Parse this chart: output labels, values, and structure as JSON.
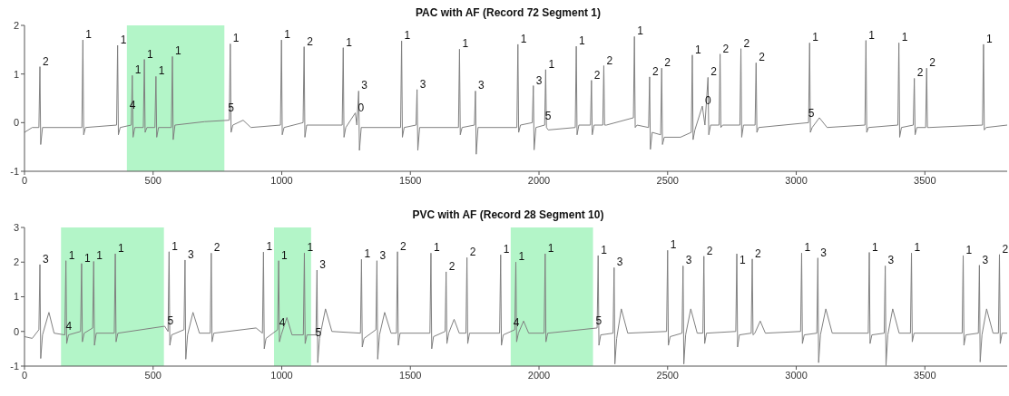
{
  "chart_data": [
    {
      "type": "line",
      "title": "PAC with AF (Record 72 Segment 1)",
      "xlim": [
        0,
        3820
      ],
      "xticks": [
        0,
        500,
        1000,
        1500,
        2000,
        2500,
        3000,
        3500
      ],
      "ylim": [
        -1,
        2
      ],
      "yticks": [
        -1,
        0,
        1,
        2
      ],
      "bands": [
        {
          "axis": "x",
          "from": 398,
          "to": 777,
          "color": "#b3f5c8"
        }
      ],
      "series": [
        {
          "color": "#808080",
          "x": [
            0,
            30,
            56,
            60,
            63,
            70,
            223,
            227,
            230,
            237,
            358,
            362,
            365,
            372,
            415,
            419,
            422,
            429,
            462,
            466,
            469,
            476,
            507,
            511,
            514,
            521,
            571,
            575,
            578,
            585,
            700,
            796,
            800,
            803,
            810,
            850,
            880,
            995,
            999,
            1002,
            1009,
            1083,
            1087,
            1090,
            1097,
            1235,
            1239,
            1242,
            1249,
            1286,
            1292,
            1299,
            1302,
            1309,
            1462,
            1466,
            1469,
            1476,
            1522,
            1526,
            1529,
            1536,
            1687,
            1691,
            1694,
            1701,
            1749,
            1753,
            1756,
            1763,
            1914,
            1918,
            1921,
            1928,
            1974,
            1978,
            1981,
            1988,
            2022,
            2026,
            2029,
            2036,
            2141,
            2145,
            2148,
            2155,
            2200,
            2204,
            2207,
            2214,
            2248,
            2252,
            2255,
            2262,
            2367,
            2371,
            2374,
            2381,
            2426,
            2430,
            2433,
            2440,
            2473,
            2477,
            2480,
            2487,
            2550,
            2592,
            2596,
            2599,
            2606,
            2635,
            2645,
            2657,
            2660,
            2667,
            2700,
            2704,
            2707,
            2714,
            2781,
            2785,
            2788,
            2795,
            2840,
            2844,
            2847,
            2854,
            3048,
            3052,
            3055,
            3062,
            3090,
            3120,
            3267,
            3271,
            3274,
            3281,
            3395,
            3399,
            3402,
            3409,
            3455,
            3459,
            3462,
            3469,
            3503,
            3507,
            3510,
            3517,
            3724,
            3728,
            3731,
            3738,
            3820
          ],
          "values": [
            -0.2,
            -0.1,
            -0.1,
            1.15,
            -0.45,
            -0.1,
            -0.1,
            1.7,
            -0.25,
            -0.1,
            -0.05,
            1.59,
            -0.25,
            -0.1,
            -0.05,
            0.97,
            -0.3,
            -0.1,
            -0.1,
            1.3,
            -0.2,
            -0.1,
            -0.1,
            0.95,
            -0.3,
            -0.1,
            -0.1,
            1.36,
            -0.35,
            -0.05,
            0.02,
            0.05,
            1.62,
            -0.2,
            -0.05,
            0.05,
            -0.1,
            -0.05,
            1.7,
            -0.25,
            -0.1,
            0,
            1.56,
            -0.3,
            -0.05,
            -0.05,
            1.54,
            -0.3,
            -0.1,
            0.2,
            -0.05,
            0.65,
            -0.57,
            -0.1,
            -0.1,
            1.68,
            -0.3,
            -0.1,
            -0.05,
            0.68,
            -0.57,
            -0.1,
            -0.1,
            1.51,
            -0.25,
            -0.1,
            -0.05,
            0.65,
            -0.65,
            -0.1,
            -0.1,
            1.61,
            -0.2,
            -0.05,
            0,
            0.76,
            -0.56,
            -0.1,
            -0.05,
            1.09,
            -0.1,
            -0.15,
            -0.1,
            1.57,
            -0.25,
            -0.05,
            -0.05,
            0.87,
            -0.25,
            -0.05,
            -0.05,
            1.17,
            -0.05,
            -0.05,
            0.1,
            1.77,
            -0.1,
            -0.05,
            -0.1,
            0.94,
            -0.55,
            -0.2,
            -0.25,
            1.12,
            -0.45,
            -0.3,
            -0.3,
            -0.2,
            1.39,
            -0.35,
            -0.15,
            0.34,
            -0.05,
            0.93,
            -0.25,
            -0.05,
            -0.05,
            1.41,
            -0.1,
            -0.05,
            -0.05,
            1.52,
            -0.3,
            -0.05,
            -0.05,
            1.23,
            -0.2,
            -0.1,
            0,
            1.64,
            -0.2,
            -0.1,
            0.1,
            -0.1,
            -0.05,
            1.69,
            -0.2,
            -0.1,
            -0.05,
            1.64,
            -0.3,
            -0.1,
            -0.05,
            0.91,
            -0.25,
            -0.1,
            -0.1,
            1.12,
            -0.1,
            -0.1,
            -0.05,
            1.61,
            -0.15,
            -0.1,
            -0.05
          ]
        }
      ],
      "annotations": [
        {
          "text": "2",
          "x": 60,
          "y": 1.15
        },
        {
          "text": "1",
          "x": 227,
          "y": 1.7
        },
        {
          "text": "1",
          "x": 362,
          "y": 1.59
        },
        {
          "text": "4",
          "x": 398,
          "y": 0.25
        },
        {
          "text": "1",
          "x": 419,
          "y": 0.97
        },
        {
          "text": "1",
          "x": 466,
          "y": 1.3
        },
        {
          "text": "1",
          "x": 511,
          "y": 0.95
        },
        {
          "text": "1",
          "x": 575,
          "y": 1.36
        },
        {
          "text": "5",
          "x": 780,
          "y": 0.2
        },
        {
          "text": "1",
          "x": 800,
          "y": 1.62
        },
        {
          "text": "1",
          "x": 999,
          "y": 1.7
        },
        {
          "text": "2",
          "x": 1087,
          "y": 1.56
        },
        {
          "text": "1",
          "x": 1239,
          "y": 1.54
        },
        {
          "text": "0",
          "x": 1286,
          "y": 0.2
        },
        {
          "text": "3",
          "x": 1299,
          "y": 0.65
        },
        {
          "text": "1",
          "x": 1466,
          "y": 1.68
        },
        {
          "text": "3",
          "x": 1526,
          "y": 0.68
        },
        {
          "text": "1",
          "x": 1691,
          "y": 1.51
        },
        {
          "text": "3",
          "x": 1753,
          "y": 0.65
        },
        {
          "text": "1",
          "x": 1918,
          "y": 1.61
        },
        {
          "text": "3",
          "x": 1978,
          "y": 0.76
        },
        {
          "text": "5",
          "x": 2013,
          "y": 0.03
        },
        {
          "text": "1",
          "x": 2026,
          "y": 1.09
        },
        {
          "text": "1",
          "x": 2145,
          "y": 1.57
        },
        {
          "text": "2",
          "x": 2204,
          "y": 0.87
        },
        {
          "text": "2",
          "x": 2252,
          "y": 1.17
        },
        {
          "text": "1",
          "x": 2371,
          "y": 1.77
        },
        {
          "text": "2",
          "x": 2430,
          "y": 0.94
        },
        {
          "text": "2",
          "x": 2477,
          "y": 1.12
        },
        {
          "text": "1",
          "x": 2596,
          "y": 1.39
        },
        {
          "text": "0",
          "x": 2635,
          "y": 0.34
        },
        {
          "text": "2",
          "x": 2657,
          "y": 0.93
        },
        {
          "text": "2",
          "x": 2704,
          "y": 1.41
        },
        {
          "text": "2",
          "x": 2785,
          "y": 1.52
        },
        {
          "text": "2",
          "x": 2844,
          "y": 1.23
        },
        {
          "text": "5",
          "x": 3036,
          "y": 0.09
        },
        {
          "text": "1",
          "x": 3052,
          "y": 1.64
        },
        {
          "text": "1",
          "x": 3271,
          "y": 1.69
        },
        {
          "text": "1",
          "x": 3399,
          "y": 1.64
        },
        {
          "text": "2",
          "x": 3459,
          "y": 0.91
        },
        {
          "text": "2",
          "x": 3507,
          "y": 1.12
        },
        {
          "text": "1",
          "x": 3728,
          "y": 1.61
        }
      ]
    },
    {
      "type": "line",
      "title": "PVC with AF (Record 28 Segment 10)",
      "xlim": [
        0,
        3820
      ],
      "xticks": [
        0,
        500,
        1000,
        1500,
        2000,
        2500,
        3000,
        3500
      ],
      "ylim": [
        -1,
        3
      ],
      "yticks": [
        -1,
        0,
        1,
        2,
        3
      ],
      "bands": [
        {
          "axis": "x",
          "from": 142,
          "to": 542,
          "color": "#b3f5c8"
        },
        {
          "axis": "x",
          "from": 970,
          "to": 1114,
          "color": "#b3f5c8"
        },
        {
          "axis": "x",
          "from": 1890,
          "to": 2210,
          "color": "#b3f5c8"
        }
      ],
      "series": [
        {
          "color": "#808080",
          "x": [
            0,
            30,
            56,
            60,
            63,
            70,
            95,
            115,
            157,
            161,
            164,
            171,
            218,
            222,
            225,
            232,
            265,
            269,
            272,
            279,
            349,
            353,
            356,
            363,
            545,
            558,
            562,
            565,
            572,
            620,
            624,
            627,
            634,
            655,
            680,
            722,
            726,
            729,
            736,
            900,
            925,
            929,
            932,
            939,
            984,
            988,
            991,
            998,
            1020,
            1040,
            1084,
            1088,
            1091,
            1098,
            1133,
            1137,
            1140,
            1147,
            1170,
            1195,
            1306,
            1310,
            1313,
            1320,
            1366,
            1370,
            1373,
            1380,
            1400,
            1425,
            1446,
            1450,
            1453,
            1460,
            1576,
            1580,
            1583,
            1590,
            1635,
            1639,
            1642,
            1649,
            1670,
            1690,
            1716,
            1720,
            1723,
            1730,
            1847,
            1851,
            1854,
            1861,
            1906,
            1910,
            1913,
            1920,
            1940,
            1960,
            2020,
            2024,
            2027,
            2034,
            2226,
            2230,
            2233,
            2240,
            2288,
            2292,
            2295,
            2302,
            2320,
            2345,
            2496,
            2500,
            2503,
            2510,
            2556,
            2560,
            2563,
            2570,
            2590,
            2615,
            2637,
            2641,
            2644,
            2651,
            2765,
            2769,
            2772,
            2779,
            2825,
            2829,
            2832,
            2839,
            2860,
            2880,
            3017,
            3021,
            3024,
            3031,
            3080,
            3084,
            3087,
            3094,
            3115,
            3140,
            3280,
            3284,
            3287,
            3294,
            3342,
            3346,
            3349,
            3356,
            3375,
            3400,
            3444,
            3448,
            3451,
            3458,
            3645,
            3649,
            3652,
            3659,
            3708,
            3712,
            3715,
            3722,
            3740,
            3765,
            3786,
            3790,
            3793,
            3800,
            3820
          ],
          "values": [
            -0.15,
            -0.2,
            0.05,
            1.93,
            -0.78,
            -0.1,
            0.55,
            -0.05,
            -0.1,
            2.04,
            -0.35,
            -0.1,
            0,
            1.96,
            -0.3,
            -0.05,
            0.1,
            2.02,
            -0.4,
            -0.05,
            -0.05,
            2.24,
            -0.3,
            -0.05,
            0.15,
            0,
            2.3,
            -0.4,
            -0.1,
            0.05,
            2.06,
            -0.8,
            -0.1,
            0.55,
            -0.05,
            -0.05,
            2.26,
            -0.3,
            -0.05,
            0.1,
            -0.05,
            2.29,
            -0.5,
            -0.2,
            0.05,
            2.04,
            -0.3,
            -0.1,
            0.4,
            -0.1,
            -0.1,
            2.26,
            -0.35,
            -0.1,
            -0.1,
            1.77,
            -0.9,
            -0.2,
            0.65,
            0,
            -0.05,
            2.08,
            -0.45,
            -0.2,
            0.05,
            2.04,
            -0.8,
            -0.1,
            0.55,
            -0.05,
            -0.05,
            2.3,
            -0.4,
            -0.05,
            -0.05,
            2.26,
            -0.5,
            -0.15,
            0,
            1.72,
            -0.35,
            -0.05,
            0.35,
            -0.05,
            -0.05,
            2.13,
            -0.35,
            -0.05,
            -0.05,
            2.21,
            -0.4,
            -0.1,
            0.05,
            2,
            -0.3,
            -0.05,
            0.3,
            -0.05,
            -0.05,
            2.24,
            -0.3,
            -0.05,
            0.1,
            2.19,
            -0.4,
            -0.1,
            -0.05,
            1.84,
            -0.94,
            -0.2,
            0.65,
            -0.05,
            0,
            2.34,
            -0.4,
            -0.15,
            -0.05,
            1.89,
            -0.94,
            -0.1,
            0.65,
            -0.05,
            -0.05,
            2.17,
            -0.35,
            -0.05,
            0,
            2.24,
            -0.45,
            -0.1,
            -0.05,
            2.09,
            -0.1,
            -0.05,
            0.3,
            -0.05,
            0,
            2.26,
            -0.35,
            -0.1,
            -0.05,
            2.12,
            -0.9,
            -0.1,
            0.65,
            -0.05,
            -0.05,
            2.28,
            -0.35,
            -0.1,
            -0.05,
            1.89,
            -0.98,
            -0.1,
            0.65,
            -0.05,
            -0.05,
            2.26,
            -0.3,
            -0.05,
            -0.05,
            2.19,
            -0.4,
            -0.1,
            -0.05,
            1.91,
            -0.88,
            -0.1,
            0.65,
            -0.05,
            -0.05,
            2.22,
            -0.35,
            -0.05,
            -0.05
          ]
        }
      ],
      "annotations": [
        {
          "text": "3",
          "x": 60,
          "y": 1.93
        },
        {
          "text": "4",
          "x": 150,
          "y": 0
        },
        {
          "text": "1",
          "x": 161,
          "y": 2.04
        },
        {
          "text": "1",
          "x": 222,
          "y": 1.96
        },
        {
          "text": "1",
          "x": 269,
          "y": 2.02
        },
        {
          "text": "1",
          "x": 353,
          "y": 2.24
        },
        {
          "text": "5",
          "x": 545,
          "y": 0.15
        },
        {
          "text": "1",
          "x": 562,
          "y": 2.3
        },
        {
          "text": "3",
          "x": 624,
          "y": 2.06
        },
        {
          "text": "2",
          "x": 726,
          "y": 2.26
        },
        {
          "text": "1",
          "x": 929,
          "y": 2.29
        },
        {
          "text": "4",
          "x": 980,
          "y": 0.1
        },
        {
          "text": "1",
          "x": 988,
          "y": 2.04
        },
        {
          "text": "1",
          "x": 1088,
          "y": 2.26
        },
        {
          "text": "5",
          "x": 1120,
          "y": -0.2
        },
        {
          "text": "3",
          "x": 1137,
          "y": 1.77
        },
        {
          "text": "1",
          "x": 1310,
          "y": 2.08
        },
        {
          "text": "3",
          "x": 1370,
          "y": 2.04
        },
        {
          "text": "2",
          "x": 1450,
          "y": 2.3
        },
        {
          "text": "1",
          "x": 1580,
          "y": 2.26
        },
        {
          "text": "2",
          "x": 1639,
          "y": 1.72
        },
        {
          "text": "2",
          "x": 1720,
          "y": 2.13
        },
        {
          "text": "1",
          "x": 1851,
          "y": 2.21
        },
        {
          "text": "4",
          "x": 1890,
          "y": 0.1
        },
        {
          "text": "1",
          "x": 1910,
          "y": 2
        },
        {
          "text": "1",
          "x": 2024,
          "y": 2.24
        },
        {
          "text": "5",
          "x": 2210,
          "y": 0.15
        },
        {
          "text": "1",
          "x": 2230,
          "y": 2.19
        },
        {
          "text": "3",
          "x": 2292,
          "y": 1.84
        },
        {
          "text": "1",
          "x": 2500,
          "y": 2.34
        },
        {
          "text": "3",
          "x": 2560,
          "y": 1.89
        },
        {
          "text": "2",
          "x": 2641,
          "y": 2.17
        },
        {
          "text": "1",
          "x": 2769,
          "y": 1.9
        },
        {
          "text": "2",
          "x": 2829,
          "y": 2.09
        },
        {
          "text": "1",
          "x": 3021,
          "y": 2.26
        },
        {
          "text": "3",
          "x": 3084,
          "y": 2.12
        },
        {
          "text": "1",
          "x": 3284,
          "y": 2.28
        },
        {
          "text": "3",
          "x": 3346,
          "y": 1.89
        },
        {
          "text": "1",
          "x": 3448,
          "y": 2.26
        },
        {
          "text": "1",
          "x": 3649,
          "y": 2.19
        },
        {
          "text": "3",
          "x": 3712,
          "y": 1.91
        },
        {
          "text": "2",
          "x": 3790,
          "y": 2.22
        }
      ]
    }
  ]
}
